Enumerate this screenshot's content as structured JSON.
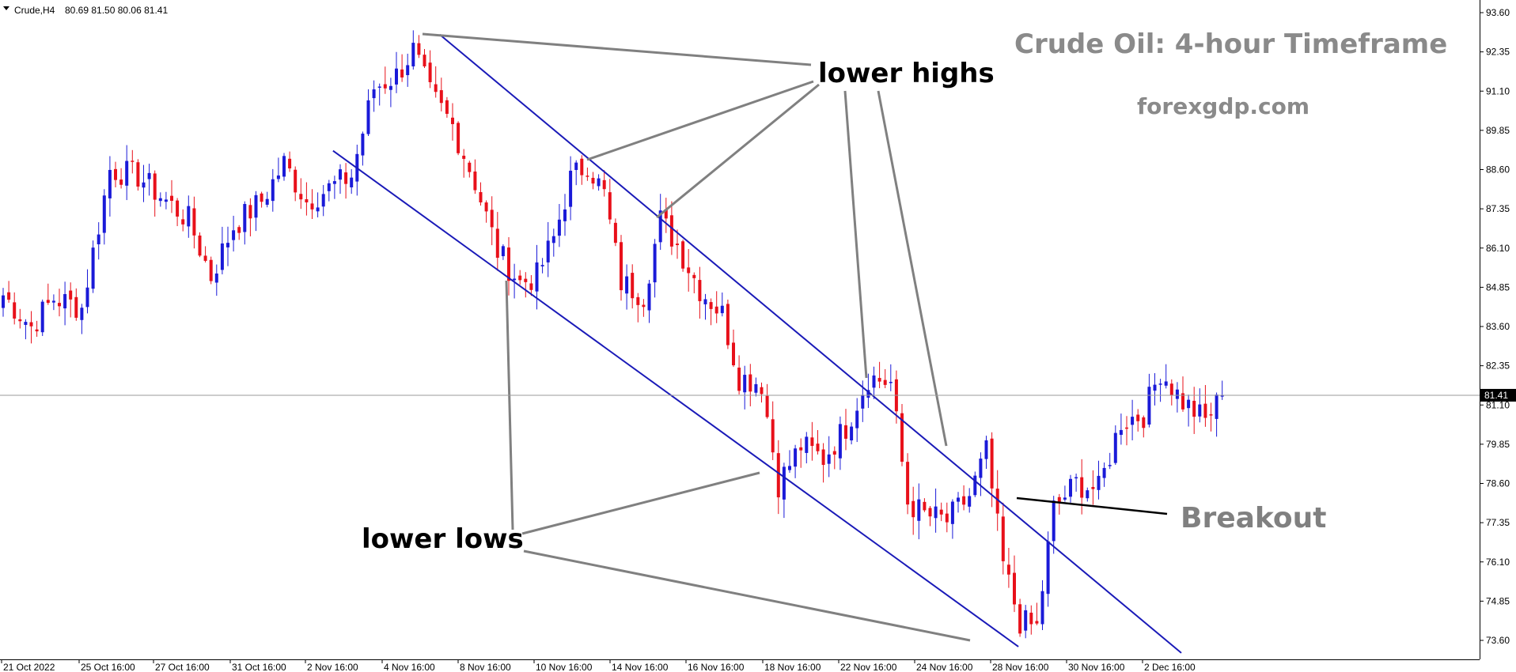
{
  "header": {
    "symbol": "Crude,H4",
    "ohlc": "80.69 81.50 80.06 81.41"
  },
  "colors": {
    "bull": "#1a1ad8",
    "bear": "#e8101a",
    "channel": "#1a1ab8",
    "annotation": "#808080",
    "breakout_line": "#000000",
    "price_tag_bg": "#000000"
  },
  "annotations": {
    "title": "Crude Oil: 4-hour Timeframe",
    "site": "forexgdp.com",
    "lower_highs": "lower highs",
    "lower_lows": "lower lows",
    "breakout": "Breakout"
  },
  "chart_data": {
    "type": "candlestick",
    "symbol": "Crude",
    "timeframe": "H4",
    "current_price": 81.41,
    "current_price_label": "81.41",
    "ylim": [
      72.8,
      94.2
    ],
    "y_ticks": [
      "93.60",
      "92.35",
      "91.10",
      "89.85",
      "88.60",
      "87.35",
      "86.10",
      "84.85",
      "83.60",
      "82.35",
      "81.10",
      "79.85",
      "78.60",
      "77.35",
      "76.10",
      "74.85",
      "73.60"
    ],
    "x_ticks": [
      "21 Oct 2022",
      "25 Oct 16:00",
      "27 Oct 16:00",
      "31 Oct 16:00",
      "2 Nov 16:00",
      "4 Nov 16:00",
      "8 Nov 16:00",
      "10 Nov 16:00",
      "14 Nov 16:00",
      "16 Nov 16:00",
      "18 Nov 16:00",
      "22 Nov 16:00",
      "24 Nov 16:00",
      "28 Nov 16:00",
      "30 Nov 16:00",
      "2 Dec 16:00"
    ],
    "anchors": [
      [
        0,
        84.6
      ],
      [
        5,
        83.6
      ],
      [
        9,
        84.5
      ],
      [
        14,
        84.2
      ],
      [
        19,
        88.6
      ],
      [
        24,
        88.4
      ],
      [
        29,
        87.6
      ],
      [
        33,
        87.0
      ],
      [
        37,
        85.2
      ],
      [
        41,
        86.8
      ],
      [
        46,
        87.6
      ],
      [
        50,
        88.8
      ],
      [
        54,
        87.6
      ],
      [
        58,
        88.0
      ],
      [
        62,
        88.4
      ],
      [
        66,
        91.2
      ],
      [
        70,
        91.6
      ],
      [
        73,
        92.4
      ],
      [
        76,
        91.0
      ],
      [
        80,
        90.0
      ],
      [
        84,
        88.2
      ],
      [
        88,
        86.0
      ],
      [
        92,
        85.0
      ],
      [
        95,
        85.2
      ],
      [
        98,
        86.4
      ],
      [
        101,
        88.3
      ],
      [
        104,
        88.8
      ],
      [
        107,
        87.8
      ],
      [
        110,
        85.0
      ],
      [
        114,
        84.6
      ],
      [
        117,
        87.0
      ],
      [
        120,
        86.2
      ],
      [
        124,
        84.8
      ],
      [
        128,
        84.0
      ],
      [
        131,
        82.0
      ],
      [
        135,
        81.8
      ],
      [
        138,
        78.6
      ],
      [
        142,
        79.8
      ],
      [
        146,
        79.4
      ],
      [
        150,
        80.4
      ],
      [
        154,
        82.0
      ],
      [
        158,
        81.8
      ],
      [
        161,
        78.0
      ],
      [
        164,
        77.6
      ],
      [
        168,
        77.4
      ],
      [
        172,
        78.2
      ],
      [
        175,
        79.6
      ],
      [
        178,
        76.0
      ],
      [
        181,
        74.2
      ],
      [
        184,
        74.0
      ],
      [
        187,
        77.8
      ],
      [
        191,
        78.6
      ],
      [
        195,
        78.4
      ],
      [
        199,
        80.6
      ],
      [
        203,
        80.8
      ],
      [
        206,
        82.2
      ],
      [
        210,
        81.2
      ],
      [
        214,
        80.6
      ],
      [
        217,
        81.4
      ]
    ],
    "channel": {
      "upper": [
        [
          78,
          92.9
        ],
        [
          210,
          73.2
        ]
      ],
      "lower": [
        [
          59,
          89.2
        ],
        [
          181,
          73.4
        ]
      ]
    }
  }
}
